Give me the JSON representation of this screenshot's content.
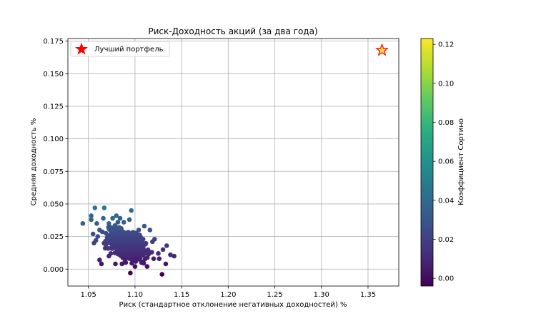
{
  "chart_data": {
    "type": "scatter",
    "title": "Риск-Доходность акций (за два года)",
    "xlabel": "Риск (стандартное отклонение негативных доходностей) %",
    "ylabel": "Средняя доходность %",
    "xlim": [
      1.028,
      1.383
    ],
    "ylim": [
      -0.013,
      0.177
    ],
    "xticks": [
      "1.05",
      "1.10",
      "1.15",
      "1.20",
      "1.25",
      "1.30",
      "1.35"
    ],
    "yticks": [
      "0.000",
      "0.025",
      "0.050",
      "0.075",
      "0.100",
      "0.125",
      "0.150",
      "0.175"
    ],
    "grid": true,
    "legend": {
      "placement": "top-left",
      "entries": [
        "Лучший портфель"
      ]
    },
    "best_portfolio": {
      "x": 1.365,
      "y": 0.168,
      "marker": "star",
      "color": "#ff0000"
    },
    "colorbar": {
      "label": "Коэффициент Сортино",
      "range": [
        -0.004,
        0.123
      ],
      "ticks": [
        "0.00",
        "0.02",
        "0.04",
        "0.06",
        "0.08",
        "0.10",
        "0.12"
      ],
      "colormap": "viridis"
    },
    "series": [
      {
        "description_of_cloud": "approx. 1000 random portfolios, x≈1.045–1.145, y≈-0.004–0.047",
        "points": [
          [
            1.044,
            0.035
          ],
          [
            1.053,
            0.041
          ],
          [
            1.053,
            0.038
          ],
          [
            1.057,
            0.047
          ],
          [
            1.067,
            0.047
          ],
          [
            1.096,
            0.045
          ],
          [
            1.055,
            0.027
          ],
          [
            1.058,
            0.022
          ],
          [
            1.056,
            0.02
          ],
          [
            1.062,
            0.007
          ],
          [
            1.064,
            0.004
          ],
          [
            1.095,
            -0.003
          ],
          [
            1.129,
            -0.004
          ],
          [
            1.133,
            0.004
          ],
          [
            1.138,
            0.011
          ],
          [
            1.142,
            0.01
          ],
          [
            1.134,
            0.018
          ],
          [
            1.126,
            0.008
          ],
          [
            1.121,
            0.023
          ],
          [
            1.116,
            0.03
          ],
          [
            1.11,
            0.033
          ],
          [
            1.107,
            0.005
          ],
          [
            1.09,
            0.005
          ],
          [
            1.079,
            0.004
          ],
          [
            1.072,
            0.01
          ],
          [
            1.066,
            0.039
          ],
          [
            1.076,
            0.039
          ],
          [
            1.08,
            0.041
          ],
          [
            1.084,
            0.039
          ],
          [
            1.088,
            0.036
          ],
          [
            1.072,
            0.035
          ],
          [
            1.059,
            0.035
          ],
          [
            1.062,
            0.03
          ],
          [
            1.068,
            0.016
          ],
          [
            1.074,
            0.012
          ],
          [
            1.086,
            0.004
          ],
          [
            1.1,
            0.002
          ],
          [
            1.113,
            0.002
          ],
          [
            1.12,
            0.008
          ],
          [
            1.125,
            0.012
          ],
          [
            1.13,
            0.015
          ],
          [
            1.118,
            0.013
          ],
          [
            1.083,
            0.032
          ],
          [
            1.094,
            0.038
          ],
          [
            1.104,
            0.03
          ],
          [
            1.06,
            0.025
          ],
          [
            1.071,
            0.022
          ],
          [
            1.085,
            0.018
          ],
          [
            1.097,
            0.012
          ],
          [
            1.108,
            0.018
          ]
        ],
        "sortino": [
          0.034,
          0.04,
          0.037,
          0.045,
          0.044,
          0.041,
          0.026,
          0.021,
          0.02,
          0.007,
          0.004,
          -0.003,
          -0.004,
          0.004,
          0.01,
          0.009,
          0.016,
          0.007,
          0.02,
          0.027,
          0.03,
          0.005,
          0.004,
          0.004,
          0.009,
          0.037,
          0.037,
          0.039,
          0.036,
          0.033,
          0.033,
          0.033,
          0.028,
          0.015,
          0.011,
          0.004,
          0.002,
          0.002,
          0.007,
          0.011,
          0.013,
          0.012,
          0.03,
          0.035,
          0.027,
          0.024,
          0.021,
          0.017,
          0.011,
          0.016
        ]
      }
    ]
  }
}
